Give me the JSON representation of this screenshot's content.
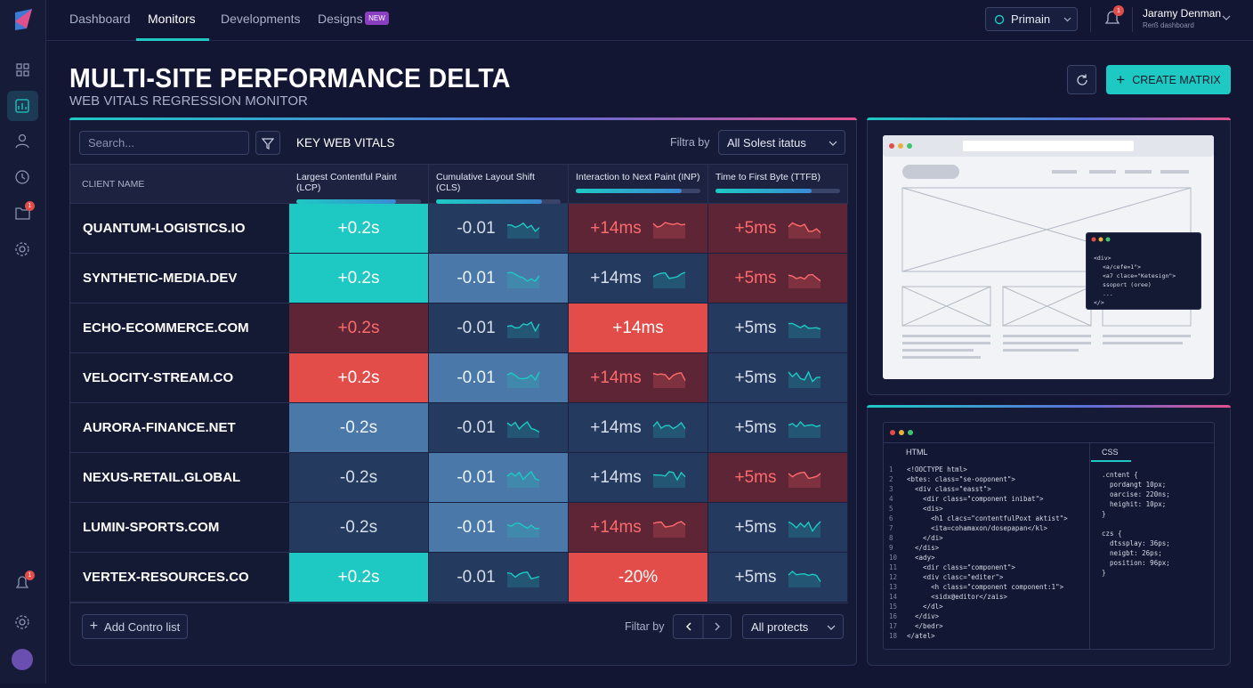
{
  "nav": {
    "items": [
      "Dashboard",
      "Monitors",
      "Developments",
      "Designs"
    ],
    "active_index": 1,
    "badge": "NEW"
  },
  "workspace": "Primain",
  "notifications": 1,
  "user": {
    "name": "Jaramy Denman",
    "role": "Rerß dashboard"
  },
  "sidebar": {
    "folder_badge": 1,
    "bell_badge": 1
  },
  "header": {
    "title": "MULTI-SITE PERFORMANCE DELTA",
    "subtitle": "WEB VITALS REGRESSION MONITOR",
    "create_button": "CREATE MATRIX"
  },
  "table": {
    "search_placeholder": "Search...",
    "heading": "KEY WEB VITALS",
    "filter_label": "Filtra by",
    "filter_select": "All Solest itatus",
    "client_header": "CLIENT NAME",
    "metrics": [
      {
        "label": "Largest Contentful Paint (LCP)",
        "progress": 80
      },
      {
        "label": "Cumulative Layout Shift (CLS)",
        "progress": 85
      },
      {
        "label": "Interaction to Next Paint (INP)",
        "progress": 85
      },
      {
        "label": "Time to First Byte (TTFB)",
        "progress": 77
      }
    ],
    "rows": [
      {
        "client": "QUANTUM-LOGISTICS.IO",
        "cells": [
          {
            "text": "+0.2s",
            "tone": "teal",
            "spark": false
          },
          {
            "text": "-0.01",
            "tone": "blue-dark",
            "spark": true
          },
          {
            "text": "+14ms",
            "tone": "red-dark",
            "spark": true
          },
          {
            "text": "+5ms",
            "tone": "red-dark",
            "spark": true
          }
        ]
      },
      {
        "client": "SYNTHETIC-MEDIA.DEV",
        "cells": [
          {
            "text": "+0.2s",
            "tone": "teal",
            "spark": false
          },
          {
            "text": "-0.01",
            "tone": "blue-mid",
            "spark": true
          },
          {
            "text": "+14ms",
            "tone": "blue-dark",
            "spark": true
          },
          {
            "text": "+5ms",
            "tone": "red-dark",
            "spark": true
          }
        ]
      },
      {
        "client": "ECHO-ECOMMERCE.COM",
        "cells": [
          {
            "text": "+0.2s",
            "tone": "red-dark",
            "spark": false
          },
          {
            "text": "-0.01",
            "tone": "blue-dark",
            "spark": true
          },
          {
            "text": "+14ms",
            "tone": "red",
            "spark": false
          },
          {
            "text": "+5ms",
            "tone": "blue-dark",
            "spark": true
          }
        ]
      },
      {
        "client": "VELOCITY-STREAM.CO",
        "cells": [
          {
            "text": "+0.2s",
            "tone": "red",
            "spark": false
          },
          {
            "text": "-0.01",
            "tone": "blue-mid",
            "spark": true
          },
          {
            "text": "+14ms",
            "tone": "red-dark",
            "spark": true
          },
          {
            "text": "+5ms",
            "tone": "blue-dark",
            "spark": true
          }
        ]
      },
      {
        "client": "AURORA-FINANCE.NET",
        "cells": [
          {
            "text": "-0.2s",
            "tone": "blue-mid",
            "spark": false
          },
          {
            "text": "-0.01",
            "tone": "blue-dark",
            "spark": true
          },
          {
            "text": "+14ms",
            "tone": "blue-dark",
            "spark": true
          },
          {
            "text": "+5ms",
            "tone": "blue-dark",
            "spark": true
          }
        ]
      },
      {
        "client": "NEXUS-RETAIL.GLOBAL",
        "cells": [
          {
            "text": "-0.2s",
            "tone": "blue-dark",
            "spark": false
          },
          {
            "text": "-0.01",
            "tone": "blue-mid",
            "spark": true
          },
          {
            "text": "+14ms",
            "tone": "blue-dark",
            "spark": true
          },
          {
            "text": "+5ms",
            "tone": "red-dark",
            "spark": true
          }
        ]
      },
      {
        "client": "LUMIN-SPORTS.COM",
        "cells": [
          {
            "text": "-0.2s",
            "tone": "blue-dark",
            "spark": false
          },
          {
            "text": "-0.01",
            "tone": "blue-mid",
            "spark": true
          },
          {
            "text": "+14ms",
            "tone": "red-dark",
            "spark": true
          },
          {
            "text": "+5ms",
            "tone": "blue-dark",
            "spark": true
          }
        ]
      },
      {
        "client": "VERTEX-RESOURCES.CO",
        "cells": [
          {
            "text": "+0.2s",
            "tone": "teal",
            "spark": false
          },
          {
            "text": "-0.01",
            "tone": "blue-dark",
            "spark": true
          },
          {
            "text": "-20%",
            "tone": "red",
            "spark": false
          },
          {
            "text": "+5ms",
            "tone": "blue-dark",
            "spark": true
          }
        ]
      }
    ],
    "footer": {
      "add_button": "Add Contro list",
      "filter_label": "Filtar by",
      "select": "All protects"
    }
  },
  "preview": {
    "popup_lines": [
      "<div>",
      "<a/cefe=1\">",
      "<a7 clace=\"Ketesign\">",
      "ssoport (oree)",
      "...",
      "</>"
    ]
  },
  "editor": {
    "tabs": [
      "HTML",
      "CSS"
    ],
    "active_tab": 1,
    "html_lines": [
      {
        "n": 1,
        "code": "<!OOCTYPE html>"
      },
      {
        "n": 2,
        "code": "<btes: class=\"se-ooponent\">"
      },
      {
        "n": 3,
        "code": "  <div class=\"easst\">"
      },
      {
        "n": 4,
        "code": "    <dir class=\"component inibat\">"
      },
      {
        "n": 5,
        "code": "    <dis>"
      },
      {
        "n": 6,
        "code": "      <h1 clacs=\"contentfulPoxt aktist\">"
      },
      {
        "n": 7,
        "code": "      <ita=cohamaxon/dosepapan</kl>"
      },
      {
        "n": 8,
        "code": "    </di>"
      },
      {
        "n": 9,
        "code": "  </dis>"
      },
      {
        "n": 10,
        "code": "  <ady>"
      },
      {
        "n": 11,
        "code": "    <dir class=\"component\">"
      },
      {
        "n": 12,
        "code": "    <div clasc=\"editer\">"
      },
      {
        "n": 13,
        "code": "      <h class=\"component component:1\">"
      },
      {
        "n": 14,
        "code": "      <sidx@editor</zais>"
      },
      {
        "n": 15,
        "code": "    </dl>"
      },
      {
        "n": 16,
        "code": "  </div>"
      },
      {
        "n": 17,
        "code": "  </bedr>"
      },
      {
        "n": 18,
        "code": "</atel>"
      }
    ],
    "css_lines": [
      ".cntent {",
      "  pordangt 10px;",
      "  oarcise: 220ns;",
      "  heighit: 10px;",
      "}",
      "czs {",
      "  dtssplay: 36ps;",
      "  neigbt: 26ps;",
      "  position: 96px;",
      "}"
    ]
  }
}
